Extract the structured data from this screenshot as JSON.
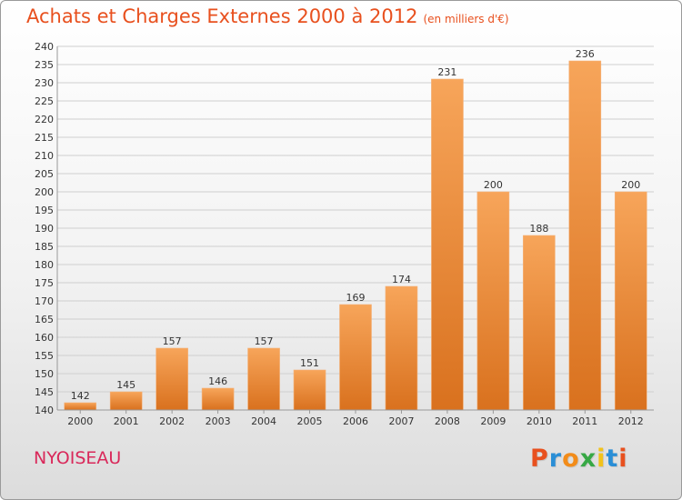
{
  "chart_data": {
    "type": "bar",
    "title": "Achats et Charges Externes 2000 à 2012",
    "subtitle": "(en milliers d'€)",
    "categories": [
      "2000",
      "2001",
      "2002",
      "2003",
      "2004",
      "2005",
      "2006",
      "2007",
      "2008",
      "2009",
      "2010",
      "2011",
      "2012"
    ],
    "values": [
      142,
      145,
      157,
      146,
      157,
      151,
      169,
      174,
      231,
      200,
      188,
      236,
      200
    ],
    "ylim": [
      140,
      240
    ],
    "yticks": [
      140,
      145,
      150,
      155,
      160,
      165,
      170,
      175,
      180,
      185,
      190,
      195,
      200,
      205,
      210,
      215,
      220,
      225,
      230,
      235,
      240
    ],
    "grid": true,
    "bar_color_top": "#f7a55a",
    "bar_color_bottom": "#d9711e",
    "grid_color": "#cfcfcf"
  },
  "footer": {
    "town": "NYOISEAU",
    "logo_letters": [
      "P",
      "r",
      "o",
      "x",
      "i",
      "t",
      "i"
    ],
    "logo_colors": [
      "#e8501e",
      "#2a8ed6",
      "#f28c1a",
      "#37a845",
      "#f2c21a",
      "#2a8ed6",
      "#e8501e"
    ]
  },
  "colors": {
    "title": "#e8501e",
    "town": "#d9285a"
  }
}
